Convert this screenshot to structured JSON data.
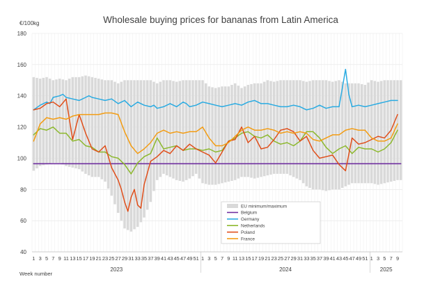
{
  "chart_data": {
    "type": "line",
    "title": "Wholesale buying prices for bananas from Latin America",
    "ylabel": "€/100kg",
    "xlabel": "Week number",
    "ylim": [
      40,
      180
    ],
    "yticks": [
      40,
      60,
      80,
      100,
      120,
      140,
      160,
      180
    ],
    "grid": true,
    "legend_position": "bottom-right",
    "years": [
      {
        "label": "2023",
        "first_index": 0,
        "weeks": 52
      },
      {
        "label": "2024",
        "first_index": 52,
        "weeks": 52
      },
      {
        "label": "2025",
        "first_index": 104,
        "weeks": 10
      }
    ],
    "week_labels": [
      1,
      3,
      5,
      7,
      9,
      11,
      13,
      15,
      17,
      19,
      21,
      23,
      25,
      27,
      29,
      31,
      33,
      35,
      37,
      39,
      41,
      43,
      45,
      47,
      49,
      51,
      1,
      3,
      5,
      7,
      9,
      11,
      13,
      15,
      17,
      19,
      21,
      23,
      25,
      27,
      29,
      31,
      33,
      35,
      37,
      39,
      41,
      43,
      45,
      47,
      49,
      51,
      1,
      3,
      5,
      7,
      9
    ],
    "week_label_indices": [
      0,
      2,
      4,
      6,
      8,
      10,
      12,
      14,
      16,
      18,
      20,
      22,
      24,
      26,
      28,
      30,
      32,
      34,
      36,
      38,
      40,
      42,
      44,
      46,
      48,
      50,
      52,
      54,
      56,
      58,
      60,
      62,
      64,
      66,
      68,
      70,
      72,
      74,
      76,
      78,
      80,
      82,
      84,
      86,
      88,
      90,
      92,
      94,
      96,
      98,
      100,
      102,
      104,
      106,
      108,
      110,
      112
    ],
    "series": [
      {
        "name": "EU minimum/maximum",
        "kind": "range",
        "color": "#d9d9d9",
        "x": [
          0,
          2,
          4,
          6,
          8,
          10,
          12,
          14,
          16,
          18,
          20,
          22,
          24,
          26,
          28,
          30,
          32,
          34,
          36,
          38,
          40,
          42,
          44,
          46,
          48,
          50,
          52,
          54,
          56,
          58,
          60,
          62,
          64,
          66,
          68,
          70,
          72,
          74,
          76,
          78,
          80,
          82,
          84,
          86,
          88,
          90,
          92,
          94,
          96,
          98,
          100,
          102,
          104,
          106,
          108,
          110,
          112,
          113
        ],
        "low": [
          92,
          95,
          96,
          97,
          97,
          95,
          94,
          93,
          90,
          88,
          88,
          85,
          76,
          65,
          55,
          53,
          56,
          62,
          72,
          86,
          90,
          88,
          86,
          85,
          87,
          90,
          84,
          83,
          83,
          84,
          85,
          86,
          88,
          88,
          87,
          88,
          89,
          90,
          90,
          90,
          88,
          86,
          82,
          80,
          80,
          79,
          80,
          80,
          82,
          84,
          84,
          84,
          84,
          83,
          84,
          85,
          86,
          86
        ],
        "high": [
          152,
          151,
          152,
          150,
          151,
          150,
          152,
          152,
          153,
          152,
          151,
          150,
          150,
          148,
          150,
          150,
          150,
          150,
          150,
          148,
          150,
          150,
          149,
          150,
          150,
          150,
          150,
          146,
          145,
          146,
          146,
          148,
          145,
          147,
          148,
          148,
          150,
          149,
          150,
          150,
          150,
          150,
          149,
          150,
          150,
          150,
          149,
          150,
          148,
          148,
          148,
          147,
          150,
          149,
          150,
          150,
          150,
          150
        ]
      },
      {
        "name": "Belgium",
        "color": "#7030a0",
        "x": [
          0,
          113
        ],
        "y": [
          96.5,
          96.5
        ]
      },
      {
        "name": "Germany",
        "color": "#29abe2",
        "x": [
          0,
          2,
          4,
          5,
          6,
          8,
          9,
          10,
          12,
          14,
          16,
          17,
          18,
          20,
          22,
          24,
          26,
          28,
          30,
          32,
          34,
          36,
          37,
          38,
          40,
          42,
          44,
          46,
          47,
          48,
          50,
          52,
          54,
          56,
          58,
          60,
          62,
          64,
          66,
          68,
          70,
          72,
          74,
          76,
          78,
          80,
          82,
          84,
          86,
          88,
          90,
          92,
          94,
          95,
          96,
          97,
          98,
          100,
          102,
          104,
          106,
          108,
          110,
          112
        ],
        "y": [
          131,
          134,
          136,
          135,
          139,
          140,
          141,
          139,
          138,
          137,
          139,
          140,
          139,
          138,
          137,
          138,
          135,
          137,
          133,
          136,
          134,
          133,
          134,
          132,
          133,
          135,
          133,
          136,
          135,
          133,
          134,
          136,
          135,
          134,
          133,
          134,
          135,
          134,
          136,
          137,
          135,
          135,
          134,
          133,
          133,
          134,
          133,
          131,
          132,
          134,
          132,
          133,
          133,
          145,
          157,
          141,
          133,
          134,
          133,
          134,
          135,
          136,
          137,
          137
        ]
      },
      {
        "name": "Netherlands",
        "color": "#8cb82c",
        "x": [
          0,
          2,
          4,
          6,
          8,
          10,
          12,
          14,
          16,
          18,
          20,
          22,
          24,
          26,
          28,
          30,
          32,
          34,
          36,
          38,
          40,
          42,
          44,
          46,
          48,
          50,
          52,
          54,
          56,
          58,
          60,
          62,
          64,
          66,
          68,
          70,
          72,
          74,
          76,
          78,
          80,
          82,
          84,
          86,
          88,
          90,
          92,
          94,
          96,
          98,
          100,
          102,
          104,
          106,
          108,
          110,
          112
        ],
        "y": [
          115,
          119,
          118,
          120,
          116,
          116,
          111,
          112,
          108,
          107,
          104,
          104,
          101,
          100,
          96,
          90,
          97,
          101,
          103,
          113,
          106,
          107,
          108,
          105,
          106,
          106,
          105,
          106,
          104,
          105,
          111,
          113,
          116,
          117,
          114,
          113,
          115,
          111,
          109,
          110,
          108,
          111,
          117,
          117,
          113,
          107,
          103,
          106,
          108,
          103,
          107,
          106,
          106,
          104,
          106,
          110,
          118
        ]
      },
      {
        "name": "Poland",
        "color": "#e04e1a",
        "x": [
          0,
          2,
          4,
          6,
          8,
          10,
          12,
          14,
          16,
          18,
          20,
          22,
          24,
          26,
          27,
          28,
          29,
          30,
          31,
          32,
          33,
          34,
          36,
          38,
          40,
          42,
          44,
          46,
          48,
          50,
          52,
          54,
          56,
          58,
          60,
          62,
          64,
          66,
          68,
          70,
          72,
          74,
          76,
          78,
          80,
          82,
          84,
          86,
          88,
          90,
          92,
          94,
          96,
          98,
          100,
          102,
          104,
          106,
          108,
          110,
          112
        ],
        "y": [
          131,
          132,
          135,
          136,
          133,
          138,
          112,
          128,
          116,
          106,
          104,
          108,
          94,
          86,
          80,
          72,
          66,
          75,
          80,
          70,
          68,
          83,
          98,
          101,
          105,
          103,
          108,
          105,
          109,
          106,
          104,
          102,
          97,
          104,
          111,
          112,
          120,
          110,
          114,
          106,
          107,
          112,
          118,
          119,
          117,
          111,
          114,
          105,
          100,
          101,
          102,
          96,
          92,
          113,
          109,
          110,
          112,
          114,
          113,
          118,
          128
        ]
      },
      {
        "name": "France",
        "color": "#f39c12",
        "x": [
          0,
          2,
          4,
          6,
          8,
          10,
          12,
          14,
          16,
          18,
          20,
          22,
          24,
          26,
          28,
          30,
          32,
          34,
          36,
          38,
          40,
          42,
          44,
          46,
          48,
          50,
          52,
          54,
          56,
          58,
          60,
          62,
          64,
          66,
          68,
          70,
          72,
          74,
          76,
          78,
          80,
          82,
          84,
          86,
          88,
          90,
          92,
          94,
          96,
          98,
          100,
          102,
          104,
          106,
          108,
          110,
          112
        ],
        "y": [
          111,
          122,
          126,
          125,
          126,
          125,
          127,
          128,
          128,
          128,
          128,
          129,
          129,
          128,
          117,
          108,
          103,
          106,
          110,
          116,
          118,
          116,
          117,
          116,
          117,
          117,
          120,
          113,
          108,
          108,
          110,
          114,
          118,
          120,
          118,
          118,
          119,
          118,
          116,
          117,
          116,
          117,
          116,
          112,
          111,
          113,
          115,
          115,
          118,
          119,
          118,
          118,
          113,
          111,
          111,
          113,
          122
        ]
      }
    ]
  }
}
